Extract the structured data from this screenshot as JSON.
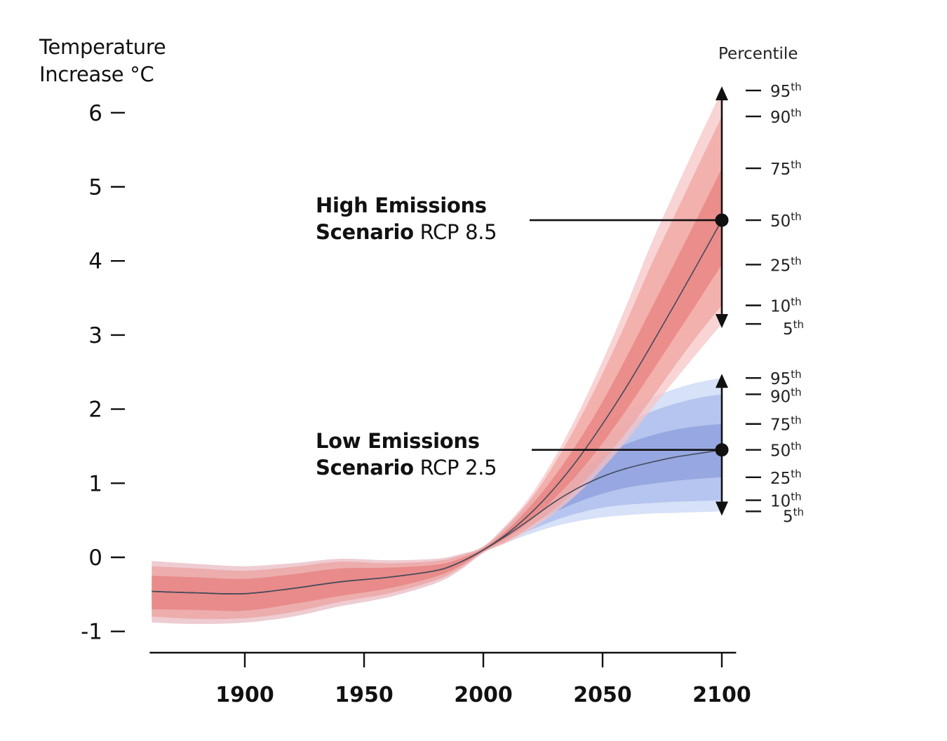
{
  "chart_data": {
    "type": "area",
    "ylabel_line1": "Temperature",
    "ylabel_line2": "Increase °C",
    "percentile_title": "Percentile",
    "xlim": [
      1861,
      2106
    ],
    "ylim": [
      -1.3,
      6.8
    ],
    "x_ticks": [
      1900,
      1950,
      2000,
      2050,
      2100
    ],
    "y_ticks": [
      6,
      5,
      4,
      3,
      2,
      1,
      0,
      -1
    ],
    "y_tick_labels": [
      "6",
      "5",
      "4",
      "3",
      "2",
      "1",
      "0",
      "-1"
    ],
    "percentile_labels": [
      "95",
      "90",
      "75",
      "50",
      "25",
      "10",
      "5"
    ],
    "percentile_suffix": "th",
    "series": [
      {
        "scenario_bold": "High Emissions",
        "scenario_word": "Scenario",
        "scenario_code": "RCP 8.5",
        "colors": {
          "outer": "#f6c4c4",
          "mid": "#f0a3a0",
          "inner": "#e77f7d",
          "line": "#444a5a"
        },
        "x": [
          1861,
          1880,
          1900,
          1920,
          1940,
          1960,
          1980,
          1990,
          2000,
          2010,
          2020,
          2030,
          2040,
          2050,
          2060,
          2070,
          2080,
          2090,
          2100
        ],
        "p50": [
          -0.46,
          -0.48,
          -0.49,
          -0.42,
          -0.33,
          -0.27,
          -0.18,
          -0.07,
          0.1,
          0.32,
          0.6,
          0.94,
          1.34,
          1.8,
          2.3,
          2.84,
          3.4,
          3.97,
          4.55
        ],
        "percentile_ticks": [
          6.3,
          5.95,
          5.25,
          4.55,
          3.95,
          3.4,
          3.15
        ],
        "arrow_range": [
          3.15,
          6.3
        ],
        "bands": [
          {
            "lower": [
              -0.88,
              -0.9,
              -0.88,
              -0.8,
              -0.66,
              -0.54,
              -0.35,
              -0.18,
              0.06,
              0.2,
              0.38,
              0.6,
              0.87,
              1.2,
              1.57,
              1.98,
              2.38,
              2.77,
              3.15
            ],
            "upper": [
              -0.05,
              -0.09,
              -0.12,
              -0.08,
              -0.02,
              -0.04,
              -0.02,
              0.04,
              0.15,
              0.45,
              0.84,
              1.35,
              1.96,
              2.65,
              3.4,
              4.2,
              4.92,
              5.62,
              6.3
            ]
          },
          {
            "lower": [
              -0.8,
              -0.83,
              -0.82,
              -0.74,
              -0.6,
              -0.49,
              -0.31,
              -0.15,
              0.07,
              0.22,
              0.42,
              0.66,
              0.95,
              1.3,
              1.69,
              2.12,
              2.57,
              3.0,
              3.4
            ],
            "upper": [
              -0.12,
              -0.15,
              -0.18,
              -0.13,
              -0.06,
              -0.08,
              -0.05,
              0.02,
              0.14,
              0.42,
              0.79,
              1.27,
              1.84,
              2.48,
              3.18,
              3.92,
              4.6,
              5.28,
              5.95
            ]
          },
          {
            "lower": [
              -0.7,
              -0.71,
              -0.72,
              -0.63,
              -0.52,
              -0.42,
              -0.26,
              -0.12,
              0.08,
              0.27,
              0.5,
              0.8,
              1.14,
              1.54,
              1.99,
              2.47,
              2.96,
              3.45,
              3.95
            ],
            "upper": [
              -0.25,
              -0.27,
              -0.29,
              -0.23,
              -0.15,
              -0.14,
              -0.1,
              -0.02,
              0.12,
              0.37,
              0.7,
              1.1,
              1.57,
              2.1,
              2.7,
              3.33,
              3.96,
              4.6,
              5.25
            ]
          }
        ]
      },
      {
        "scenario_bold": "Low Emissions",
        "scenario_word": "Scenario",
        "scenario_code": "RCP 2.5",
        "colors": {
          "outer": "#ccd8f6",
          "mid": "#acbdec",
          "inner": "#8d9fdd",
          "line": "#444a5a"
        },
        "x": [
          1861,
          1880,
          1900,
          1920,
          1940,
          1960,
          1980,
          1990,
          2000,
          2010,
          2020,
          2030,
          2040,
          2050,
          2060,
          2070,
          2080,
          2090,
          2100
        ],
        "p50": [
          -0.46,
          -0.48,
          -0.49,
          -0.42,
          -0.33,
          -0.27,
          -0.18,
          -0.07,
          0.1,
          0.3,
          0.52,
          0.75,
          0.94,
          1.09,
          1.2,
          1.28,
          1.35,
          1.4,
          1.45
        ],
        "percentile_ticks": [
          2.42,
          2.2,
          1.8,
          1.45,
          1.08,
          0.77,
          0.62
        ],
        "arrow_range": [
          0.62,
          2.42
        ],
        "bands": [
          {
            "lower": [
              -0.88,
              -0.9,
              -0.88,
              -0.8,
              -0.66,
              -0.54,
              -0.35,
              -0.18,
              0.06,
              0.2,
              0.32,
              0.42,
              0.49,
              0.54,
              0.57,
              0.59,
              0.6,
              0.61,
              0.62
            ],
            "upper": [
              -0.05,
              -0.09,
              -0.12,
              -0.08,
              -0.02,
              -0.04,
              -0.02,
              0.04,
              0.15,
              0.45,
              0.78,
              1.12,
              1.46,
              1.76,
              1.99,
              2.15,
              2.27,
              2.36,
              2.42
            ]
          },
          {
            "lower": [
              -0.8,
              -0.83,
              -0.82,
              -0.74,
              -0.6,
              -0.49,
              -0.31,
              -0.15,
              0.07,
              0.23,
              0.37,
              0.5,
              0.6,
              0.67,
              0.71,
              0.73,
              0.75,
              0.76,
              0.77
            ],
            "upper": [
              -0.12,
              -0.15,
              -0.18,
              -0.13,
              -0.06,
              -0.08,
              -0.05,
              0.02,
              0.14,
              0.42,
              0.72,
              1.02,
              1.32,
              1.6,
              1.81,
              1.96,
              2.07,
              2.15,
              2.2
            ]
          },
          {
            "lower": [
              -0.7,
              -0.71,
              -0.72,
              -0.63,
              -0.52,
              -0.42,
              -0.26,
              -0.12,
              0.08,
              0.26,
              0.44,
              0.61,
              0.75,
              0.86,
              0.94,
              0.99,
              1.03,
              1.06,
              1.08
            ],
            "upper": [
              -0.25,
              -0.27,
              -0.29,
              -0.23,
              -0.15,
              -0.14,
              -0.1,
              -0.02,
              0.12,
              0.36,
              0.63,
              0.9,
              1.15,
              1.37,
              1.53,
              1.64,
              1.72,
              1.77,
              1.8
            ]
          }
        ]
      }
    ]
  }
}
